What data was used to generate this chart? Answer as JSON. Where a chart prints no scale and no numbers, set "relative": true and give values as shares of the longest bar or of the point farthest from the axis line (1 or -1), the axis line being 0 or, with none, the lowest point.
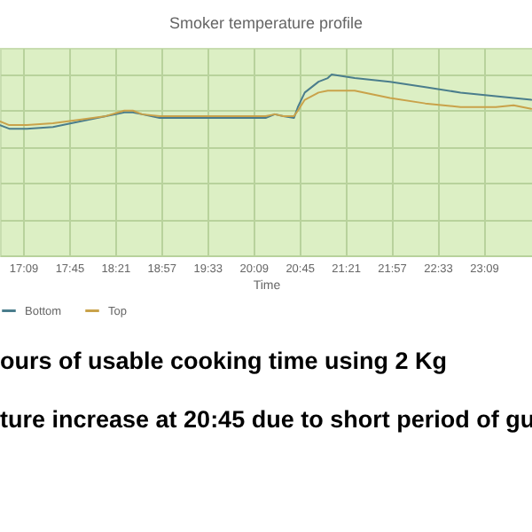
{
  "chart_data": {
    "type": "line",
    "title": "Smoker temperature profile",
    "xlabel": "Time",
    "relative": true,
    "grid": true,
    "legend": "bottom",
    "xlim": [
      16.85,
      23.78
    ],
    "xticks": [
      {
        "value": 17.15,
        "label": "17:09"
      },
      {
        "value": 17.75,
        "label": "17:45"
      },
      {
        "value": 18.35,
        "label": "18:21"
      },
      {
        "value": 18.95,
        "label": "18:57"
      },
      {
        "value": 19.55,
        "label": "19:33"
      },
      {
        "value": 20.15,
        "label": "20:09"
      },
      {
        "value": 20.75,
        "label": "20:45"
      },
      {
        "value": 21.35,
        "label": "21:21"
      },
      {
        "value": 21.95,
        "label": "21:57"
      },
      {
        "value": 22.55,
        "label": "22:33"
      },
      {
        "value": 23.15,
        "label": "23:09"
      }
    ],
    "x": [
      16.85,
      16.97,
      17.2,
      17.54,
      17.89,
      18.23,
      18.47,
      18.58,
      18.7,
      18.93,
      19.39,
      19.85,
      20.31,
      20.43,
      20.54,
      20.68,
      20.73,
      20.82,
      21.0,
      21.12,
      21.17,
      21.47,
      21.93,
      22.39,
      22.85,
      23.31,
      23.54,
      23.77
    ],
    "series": [
      {
        "name": "Bottom",
        "color": "#4a7d8c",
        "values": [
          0.72,
          0.7,
          0.7,
          0.71,
          0.74,
          0.77,
          0.79,
          0.79,
          0.78,
          0.76,
          0.76,
          0.76,
          0.76,
          0.78,
          0.77,
          0.76,
          0.82,
          0.9,
          0.96,
          0.98,
          1,
          0.98,
          0.96,
          0.93,
          0.9,
          0.88,
          0.87,
          0.86
        ]
      },
      {
        "name": "Top",
        "color": "#c9a24a",
        "values": [
          0.74,
          0.72,
          0.72,
          0.73,
          0.75,
          0.77,
          0.8,
          0.8,
          0.78,
          0.77,
          0.77,
          0.77,
          0.77,
          0.78,
          0.77,
          0.77,
          0.8,
          0.86,
          0.9,
          0.91,
          0.91,
          0.91,
          0.87,
          0.84,
          0.82,
          0.82,
          0.83,
          0.81
        ]
      }
    ],
    "annotations": [
      "ours of usable cooking time using 2 Kg",
      "ture increase at 20:45 due to short period of gu"
    ]
  }
}
